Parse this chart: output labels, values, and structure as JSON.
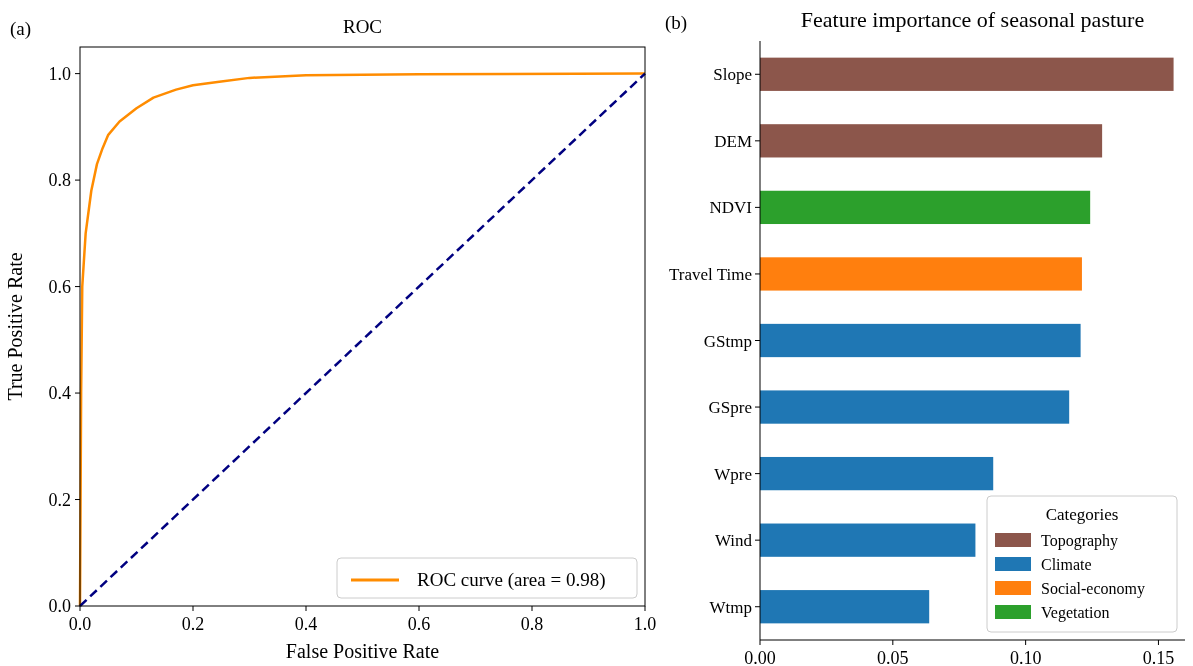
{
  "chart_data": [
    {
      "type": "line",
      "title": "ROC",
      "xlabel": "False Positive Rate",
      "ylabel": "True Positive Rate",
      "annotations": [
        "(a)"
      ],
      "series": [
        {
          "name": "ROC curve (area = 0.98)",
          "color": "#ff8c00",
          "line_style": "solid",
          "x": [
            0,
            0.002,
            0.004,
            0.01,
            0.02,
            0.03,
            0.04,
            0.05,
            0.07,
            0.1,
            0.13,
            0.17,
            0.2,
            0.25,
            0.3,
            0.4,
            0.6,
            1
          ],
          "values": [
            0,
            0.4,
            0.6,
            0.7,
            0.78,
            0.83,
            0.86,
            0.885,
            0.91,
            0.935,
            0.955,
            0.97,
            0.978,
            0.985,
            0.992,
            0.997,
            0.999,
            1
          ]
        },
        {
          "color": "#000080",
          "line_style": "dashed",
          "x": [
            0,
            1
          ],
          "values": [
            0,
            1
          ]
        }
      ],
      "xlim": [
        0,
        1
      ],
      "ylim": [
        0,
        1.05
      ],
      "xticks": [
        {
          "value": 0,
          "label": "0.0"
        },
        0.2,
        0.4,
        0.6,
        0.8,
        {
          "value": 1,
          "label": "1.0"
        }
      ],
      "yticks": [
        {
          "value": 0,
          "label": "0.0"
        },
        0.2,
        0.4,
        0.6,
        0.8,
        {
          "value": 1,
          "label": "1.0"
        }
      ],
      "legend": "bottom right",
      "grid": false
    },
    {
      "type": "bar",
      "orientation": "horizontal",
      "title": "Feature importance of seasonal pasture",
      "annotations": [
        "(b)"
      ],
      "categories": [
        "Slope",
        "DEM",
        "NDVI",
        "Travel Time",
        "GStmp",
        "GSpre",
        "Wpre",
        "Wind",
        "Wtmp"
      ],
      "series": [
        {
          "name": "Topography",
          "color": "#8c564b",
          "values": [
            0.1557,
            0.1288,
            null,
            null,
            null,
            null,
            null,
            null,
            null
          ]
        },
        {
          "name": "Climate",
          "color": "#1f77b4",
          "values": [
            null,
            null,
            null,
            null,
            0.1207,
            0.1164,
            0.0878,
            0.0811,
            0.0637
          ]
        },
        {
          "name": "Social-economy",
          "color": "#ff7f0e",
          "values": [
            null,
            null,
            null,
            0.1212,
            null,
            null,
            null,
            null,
            null
          ]
        },
        {
          "name": "Vegetation",
          "color": "#2ca02c",
          "values": [
            null,
            null,
            0.1243,
            null,
            null,
            null,
            null,
            null,
            null
          ]
        }
      ],
      "xlim": [
        0,
        0.16
      ],
      "xticks": [
        {
          "value": 0,
          "label": "0.00"
        },
        0.05,
        {
          "value": 0.1,
          "label": "0.10"
        },
        0.15
      ],
      "legend": "bottom right",
      "legend_title": "Categories",
      "grid": false
    }
  ]
}
